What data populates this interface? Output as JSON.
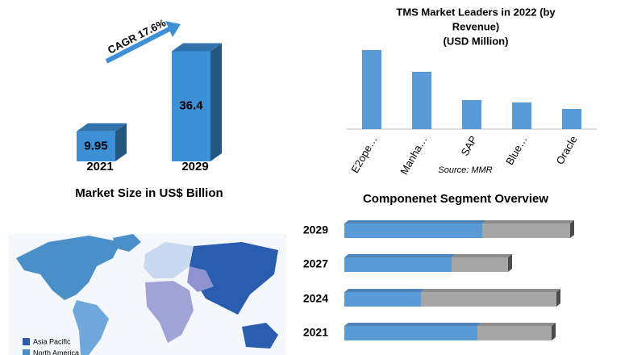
{
  "chart_data": [
    {
      "type": "bar3d",
      "title": "Market Size in US$ Billion",
      "categories": [
        "2021",
        "2029"
      ],
      "values": [
        9.95,
        36.4
      ],
      "color": "#3d8fd6",
      "annotation": "CAGR 17.6%",
      "ylim": [
        0,
        40
      ]
    },
    {
      "type": "bar",
      "title": [
        "TMS Market Leaders  in 2022  (by",
        "Revenue)",
        "(USD Million)"
      ],
      "categories": [
        "E2ope…",
        "Manha…",
        "SAP",
        "Blue…",
        "Oracle"
      ],
      "values": [
        98,
        71,
        36,
        33,
        25
      ],
      "color": "#5b9bd5",
      "ylim": [
        0,
        100
      ],
      "source": "Source: MMR"
    },
    {
      "type": "stacked_hbar",
      "title": "Componenet Segment Overview",
      "categories": [
        "2029",
        "2027",
        "2024",
        "2021"
      ],
      "series": [
        {
          "color": "#5b9bd5",
          "values": [
            171,
            133,
            95,
            165
          ]
        },
        {
          "color": "#a6a6a6",
          "values": [
            109,
            70,
            168,
            92
          ]
        }
      ],
      "xlim": [
        0,
        300
      ]
    }
  ],
  "map": {
    "legend": [
      {
        "label": "Asia Pacific",
        "color": "#2a5db0"
      },
      {
        "label": "North America",
        "color": "#4a8fc8"
      }
    ]
  }
}
